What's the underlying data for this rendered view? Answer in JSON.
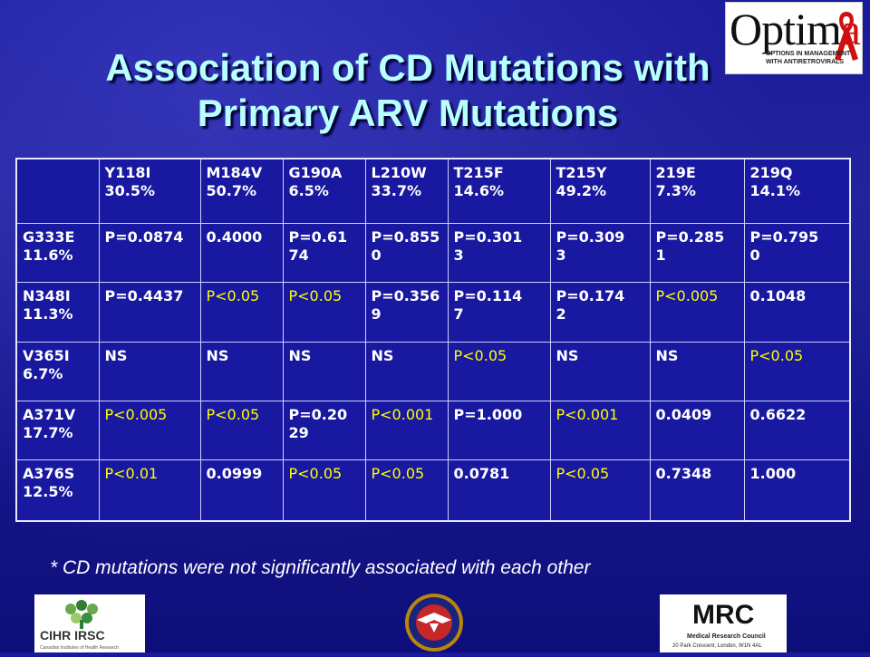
{
  "slide": {
    "title_line1": "Association of CD Mutations with",
    "title_line2": "Primary ARV Mutations",
    "footnote": "* CD mutations were not significantly associated with each other"
  },
  "logos": {
    "optima_word_main": "Optim",
    "optima_word_accent": "a",
    "optima_tag_line1": "OPTIONS IN MANAGEMENT",
    "optima_tag_line2": "WITH ANTIRETROVIRALS",
    "cihr_name": "CIHR IRSC",
    "cihr_subtitle": "Canadian Institutes of Health Research",
    "va_name": "Department of Veterans Affairs seal",
    "mrc_name": "MRC",
    "mrc_subtitle": "Medical Research Council",
    "mrc_address": "20 Park Crescent, London, W1N 4AL"
  },
  "table": {
    "columns": [
      {
        "name": "Y118I",
        "pct": "30.5%"
      },
      {
        "name": "M184V",
        "pct": "50.7%"
      },
      {
        "name": "G190A",
        "pct": "6.5%"
      },
      {
        "name": "L210W",
        "pct": "33.7%"
      },
      {
        "name": "T215F",
        "pct": "14.6%"
      },
      {
        "name": "T215Y",
        "pct": "49.2%"
      },
      {
        "name": "219E",
        "pct": "7.3%"
      },
      {
        "name": "219Q",
        "pct": "14.1%"
      }
    ],
    "rows": [
      {
        "name": "G333E",
        "pct": "11.6%",
        "cells": [
          {
            "lines": [
              "P=0.0874"
            ],
            "sig": false
          },
          {
            "lines": [
              "0.4000"
            ],
            "sig": false
          },
          {
            "lines": [
              "P=0.61",
              "74"
            ],
            "sig": false
          },
          {
            "lines": [
              "P=0.855",
              "0"
            ],
            "sig": false
          },
          {
            "lines": [
              "P=0.301",
              "3"
            ],
            "sig": false
          },
          {
            "lines": [
              "P=0.309",
              "3"
            ],
            "sig": false
          },
          {
            "lines": [
              "P=0.285",
              "1"
            ],
            "sig": false
          },
          {
            "lines": [
              "P=0.795",
              "0"
            ],
            "sig": false
          }
        ]
      },
      {
        "name": "N348I",
        "pct": "11.3%",
        "cells": [
          {
            "lines": [
              "P=0.4437"
            ],
            "sig": false
          },
          {
            "lines": [
              "P<0.05"
            ],
            "sig": true
          },
          {
            "lines": [
              "P<0.05"
            ],
            "sig": true
          },
          {
            "lines": [
              "P=0.356",
              "9"
            ],
            "sig": false
          },
          {
            "lines": [
              "P=0.114",
              "7"
            ],
            "sig": false
          },
          {
            "lines": [
              "P=0.174",
              "2"
            ],
            "sig": false
          },
          {
            "lines": [
              "P<0.005"
            ],
            "sig": true
          },
          {
            "lines": [
              "0.1048"
            ],
            "sig": false
          }
        ]
      },
      {
        "name": "V365I",
        "pct": "6.7%",
        "cells": [
          {
            "lines": [
              "NS"
            ],
            "sig": false
          },
          {
            "lines": [
              "NS"
            ],
            "sig": false
          },
          {
            "lines": [
              "NS"
            ],
            "sig": false
          },
          {
            "lines": [
              "NS"
            ],
            "sig": false
          },
          {
            "lines": [
              "P<0.05"
            ],
            "sig": true
          },
          {
            "lines": [
              "NS"
            ],
            "sig": false
          },
          {
            "lines": [
              "NS"
            ],
            "sig": false
          },
          {
            "lines": [
              "P<0.05"
            ],
            "sig": true
          }
        ]
      },
      {
        "name": "A371V",
        "pct": "17.7%",
        "cells": [
          {
            "lines": [
              "P<0.005"
            ],
            "sig": true
          },
          {
            "lines": [
              "P<0.05"
            ],
            "sig": true
          },
          {
            "lines": [
              "P=0.20",
              "29"
            ],
            "sig": false
          },
          {
            "lines": [
              "P<0.001"
            ],
            "sig": true
          },
          {
            "lines": [
              "P=1.000"
            ],
            "sig": false
          },
          {
            "lines": [
              "P<0.001"
            ],
            "sig": true
          },
          {
            "lines": [
              "0.0409"
            ],
            "sig": false
          },
          {
            "lines": [
              "0.6622"
            ],
            "sig": false
          }
        ]
      },
      {
        "name": "A376S",
        "pct": "12.5%",
        "cells": [
          {
            "lines": [
              "P<0.01"
            ],
            "sig": true
          },
          {
            "lines": [
              "0.0999"
            ],
            "sig": false
          },
          {
            "lines": [
              "P<0.05"
            ],
            "sig": true
          },
          {
            "lines": [
              "P<0.05"
            ],
            "sig": true
          },
          {
            "lines": [
              "0.0781"
            ],
            "sig": false
          },
          {
            "lines": [
              "P<0.05"
            ],
            "sig": true
          },
          {
            "lines": [
              "0.7348"
            ],
            "sig": false
          },
          {
            "lines": [
              "1.000"
            ],
            "sig": false
          }
        ]
      }
    ]
  },
  "colors": {
    "background": "#1a1a9a",
    "title": "#b8ffff",
    "significant": "#ffff00",
    "text": "#ffffff"
  }
}
